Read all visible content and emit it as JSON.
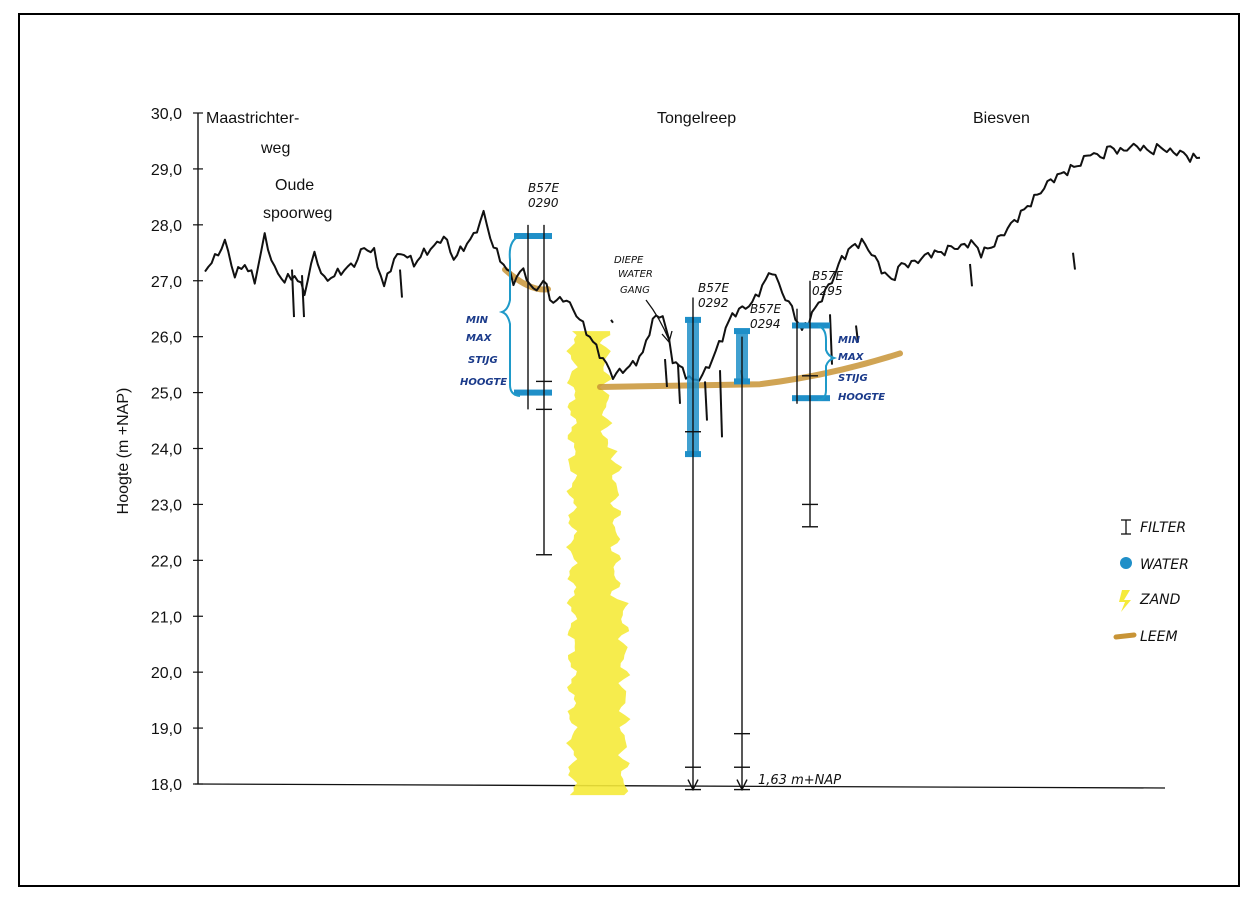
{
  "chart_data": {
    "type": "line",
    "title": "",
    "ylabel": "Hoogte (m +NAP)",
    "xlabel": "",
    "ylim": [
      18,
      30
    ],
    "yticks": [
      "18,0",
      "19,0",
      "20,0",
      "21,0",
      "22,0",
      "23,0",
      "24,0",
      "25,0",
      "26,0",
      "27,0",
      "28,0",
      "29,0",
      "30,0"
    ],
    "grid": false,
    "place_labels": [
      "Maastrichter-",
      "weg",
      "Oude",
      "spoorweg",
      "Tongelreep",
      "Biesven"
    ],
    "surface_profile": {
      "x": [
        0,
        1,
        2,
        3,
        4,
        5,
        6,
        7,
        8,
        9,
        10,
        11,
        12,
        13,
        14,
        15,
        16,
        17,
        18,
        19,
        20,
        21,
        22,
        23,
        24,
        25,
        26,
        27,
        28,
        29,
        30,
        31,
        32,
        33,
        34,
        35,
        36,
        37,
        38,
        39,
        40,
        41,
        42,
        43,
        44,
        45,
        46,
        47,
        48,
        49,
        50,
        51,
        52,
        53,
        54,
        55,
        56,
        57,
        58,
        59,
        60,
        61,
        62,
        63,
        64,
        65,
        66,
        67,
        68,
        69,
        70,
        71,
        72,
        73,
        74,
        75,
        76,
        77,
        78,
        79,
        80,
        81,
        82,
        83,
        84,
        85,
        86,
        87,
        88,
        89,
        90,
        91,
        92,
        93,
        94,
        95,
        96,
        97,
        98,
        99,
        100
      ],
      "y": [
        27.2,
        27.4,
        27.7,
        27.1,
        27.3,
        27.0,
        27.8,
        27.2,
        27.0,
        27.1,
        26.8,
        27.5,
        27.0,
        27.1,
        27.2,
        27.3,
        27.6,
        27.5,
        26.9,
        27.4,
        27.5,
        27.3,
        27.5,
        27.6,
        27.8,
        27.4,
        27.6,
        27.8,
        28.2,
        27.6,
        27.3,
        27.0,
        27.2,
        26.8,
        27.0,
        26.6,
        26.7,
        26.5,
        26.2,
        25.9,
        25.6,
        25.3,
        25.4,
        25.5,
        25.7,
        26.3,
        26.4,
        25.6,
        25.4,
        25.2,
        25.3,
        25.6,
        26.0,
        26.4,
        26.5,
        26.6,
        26.9,
        27.2,
        26.8,
        26.5,
        26.1,
        26.4,
        26.7,
        27.0,
        27.4,
        27.6,
        27.7,
        27.5,
        27.2,
        27.0,
        27.3,
        27.3,
        27.4,
        27.5,
        27.5,
        27.6,
        27.6,
        27.7,
        27.5,
        27.6,
        27.8,
        28.0,
        28.2,
        28.4,
        28.6,
        28.8,
        28.9,
        29.0,
        29.1,
        29.3,
        29.2,
        29.4,
        29.3,
        29.4,
        29.4,
        29.3,
        29.4,
        29.3,
        29.3,
        29.2,
        29.2
      ]
    },
    "wells": [
      {
        "id": "B57E",
        "label_lines": [
          "B57E",
          "0290"
        ],
        "top": 28.0,
        "bottom": 22.1,
        "filter": [
          24.7,
          25.2
        ],
        "water_min": 25.0,
        "water_max": 27.8
      },
      {
        "id": "B57E",
        "label_lines": [
          "B57E",
          "0292"
        ],
        "top": 26.7,
        "bottom": 17.9,
        "filter": [
          18.3,
          24.3
        ],
        "water_min": 23.9,
        "water_max": 26.3
      },
      {
        "id": "B57E",
        "label_lines": [
          "B57E",
          "0294"
        ],
        "top": 26.0,
        "bottom": 17.9,
        "filter": [
          18.3,
          18.9
        ],
        "water_min": 25.2,
        "water_max": 26.1
      },
      {
        "id": "B57E",
        "label_lines": [
          "B57E",
          "0295"
        ],
        "top": 27.0,
        "bottom": 22.6,
        "filter": [
          23.0,
          25.3
        ],
        "water_min": 24.9,
        "water_max": 26.2
      }
    ],
    "sand_column": {
      "top": 26.1,
      "bottom": 17.9
    },
    "loam_layer": {
      "left_start": 27.2,
      "left_end": 25.3,
      "right_start": 25.1,
      "right_end": 25.7
    },
    "annotations": {
      "min_max_left": [
        "MIN",
        "MAX",
        "STIJG",
        "HOOGTE"
      ],
      "min_max_right": [
        "MIN",
        "MAX",
        "STIJG",
        "HOOGTE"
      ],
      "diepe_watergang": [
        "DIEPE",
        "WATER",
        "GANG"
      ],
      "depth_note": "1,63 m+NAP"
    },
    "legend": [
      {
        "symbol": "filter",
        "label": "FILTER",
        "color": "#222222"
      },
      {
        "symbol": "water",
        "label": "WATER",
        "color": "#1f8fc8"
      },
      {
        "symbol": "zand",
        "label": "ZAND",
        "color": "#f5ea3a"
      },
      {
        "symbol": "leem",
        "label": "LEEM",
        "color": "#c89436"
      }
    ],
    "legend_placement": "right",
    "colors": {
      "profile": "#111111",
      "water": "#1f8fc8",
      "sand": "#f5ea3a",
      "loam": "#c89436",
      "bracket": "#1f9ac9",
      "annotation": "#1a3a8a"
    }
  }
}
